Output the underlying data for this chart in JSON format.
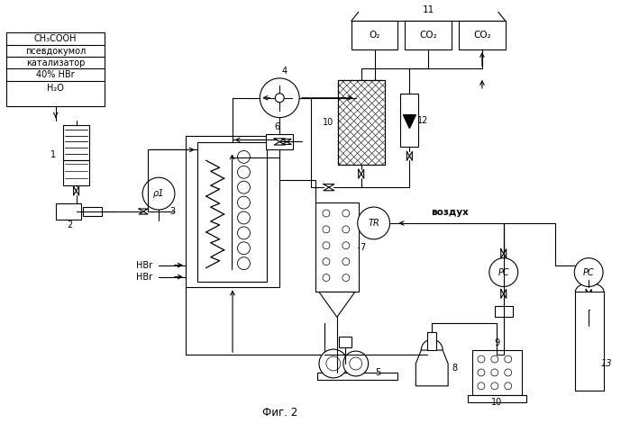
{
  "title": "Фиг. 2",
  "bg_color": "#ffffff",
  "chemicals": [
    "CH₃COOH",
    "псевдокумол",
    "катализатор",
    "40% HBr",
    "H₂O"
  ],
  "gas_labels": [
    "O₂",
    "CO₂",
    "CO₂"
  ],
  "label_vozduh": "воздух",
  "label_HBr1": "HBr",
  "label_HBr2": "HBr",
  "num_11": "11",
  "num_4": "4",
  "num_6": "6",
  "num_10_top": "10",
  "num_12": "12",
  "num_p1": "ρ1",
  "num_3": "3",
  "num_TR": "TR",
  "num_7": "7",
  "num_1": "1",
  "num_2": "2",
  "num_5": "5",
  "num_8": "8",
  "num_9": "9",
  "num_10_bot": "10",
  "num_13": "13",
  "num_PC1": "PC",
  "num_PC2": "PC"
}
